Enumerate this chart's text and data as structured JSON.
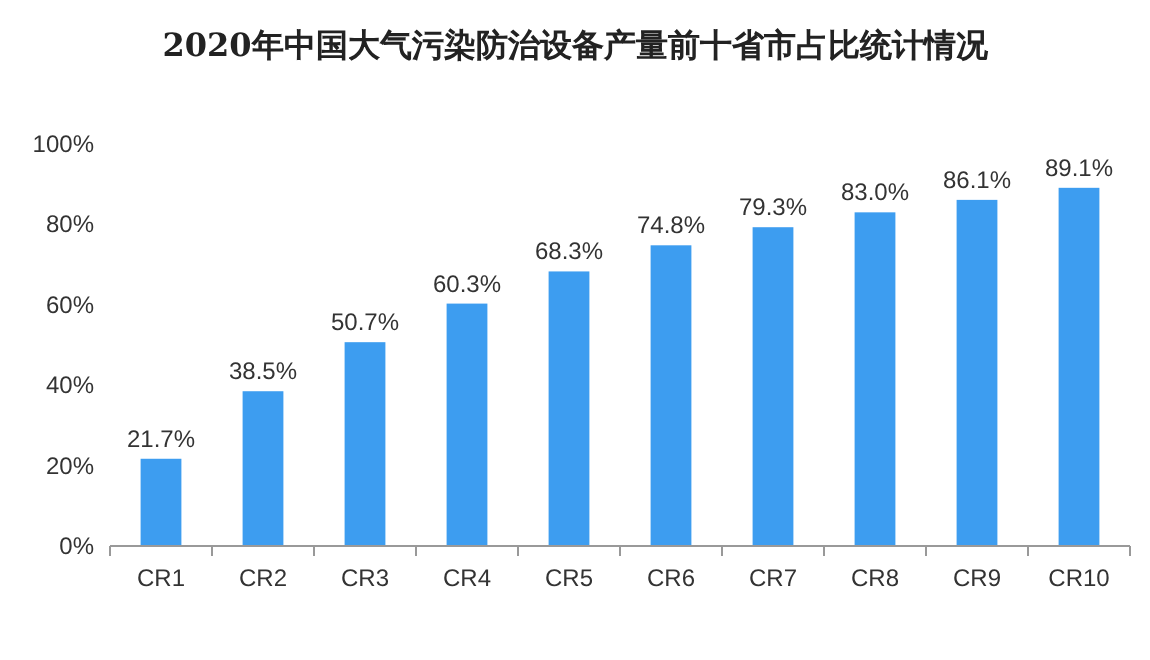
{
  "chart_data": {
    "type": "bar",
    "title": "2020年中国大气污染防治设备产量前十省市占比统计情况",
    "categories": [
      "CR1",
      "CR2",
      "CR3",
      "CR4",
      "CR5",
      "CR6",
      "CR7",
      "CR8",
      "CR9",
      "CR10"
    ],
    "values": [
      21.7,
      38.5,
      50.7,
      60.3,
      68.3,
      74.8,
      79.3,
      83.0,
      86.1,
      89.1
    ],
    "value_labels": [
      "21.7%",
      "38.5%",
      "50.7%",
      "60.3%",
      "68.3%",
      "74.8%",
      "79.3%",
      "83.0%",
      "86.1%",
      "89.1%"
    ],
    "color": "#3d9df0",
    "ylim": [
      0,
      100
    ],
    "yticks": [
      {
        "value": 0,
        "label": "0%"
      },
      {
        "value": 20,
        "label": "20%"
      },
      {
        "value": 40,
        "label": "40%"
      },
      {
        "value": 60,
        "label": "60%"
      },
      {
        "value": 80,
        "label": "80%"
      },
      {
        "value": 100,
        "label": "100%"
      }
    ],
    "grid": false
  }
}
